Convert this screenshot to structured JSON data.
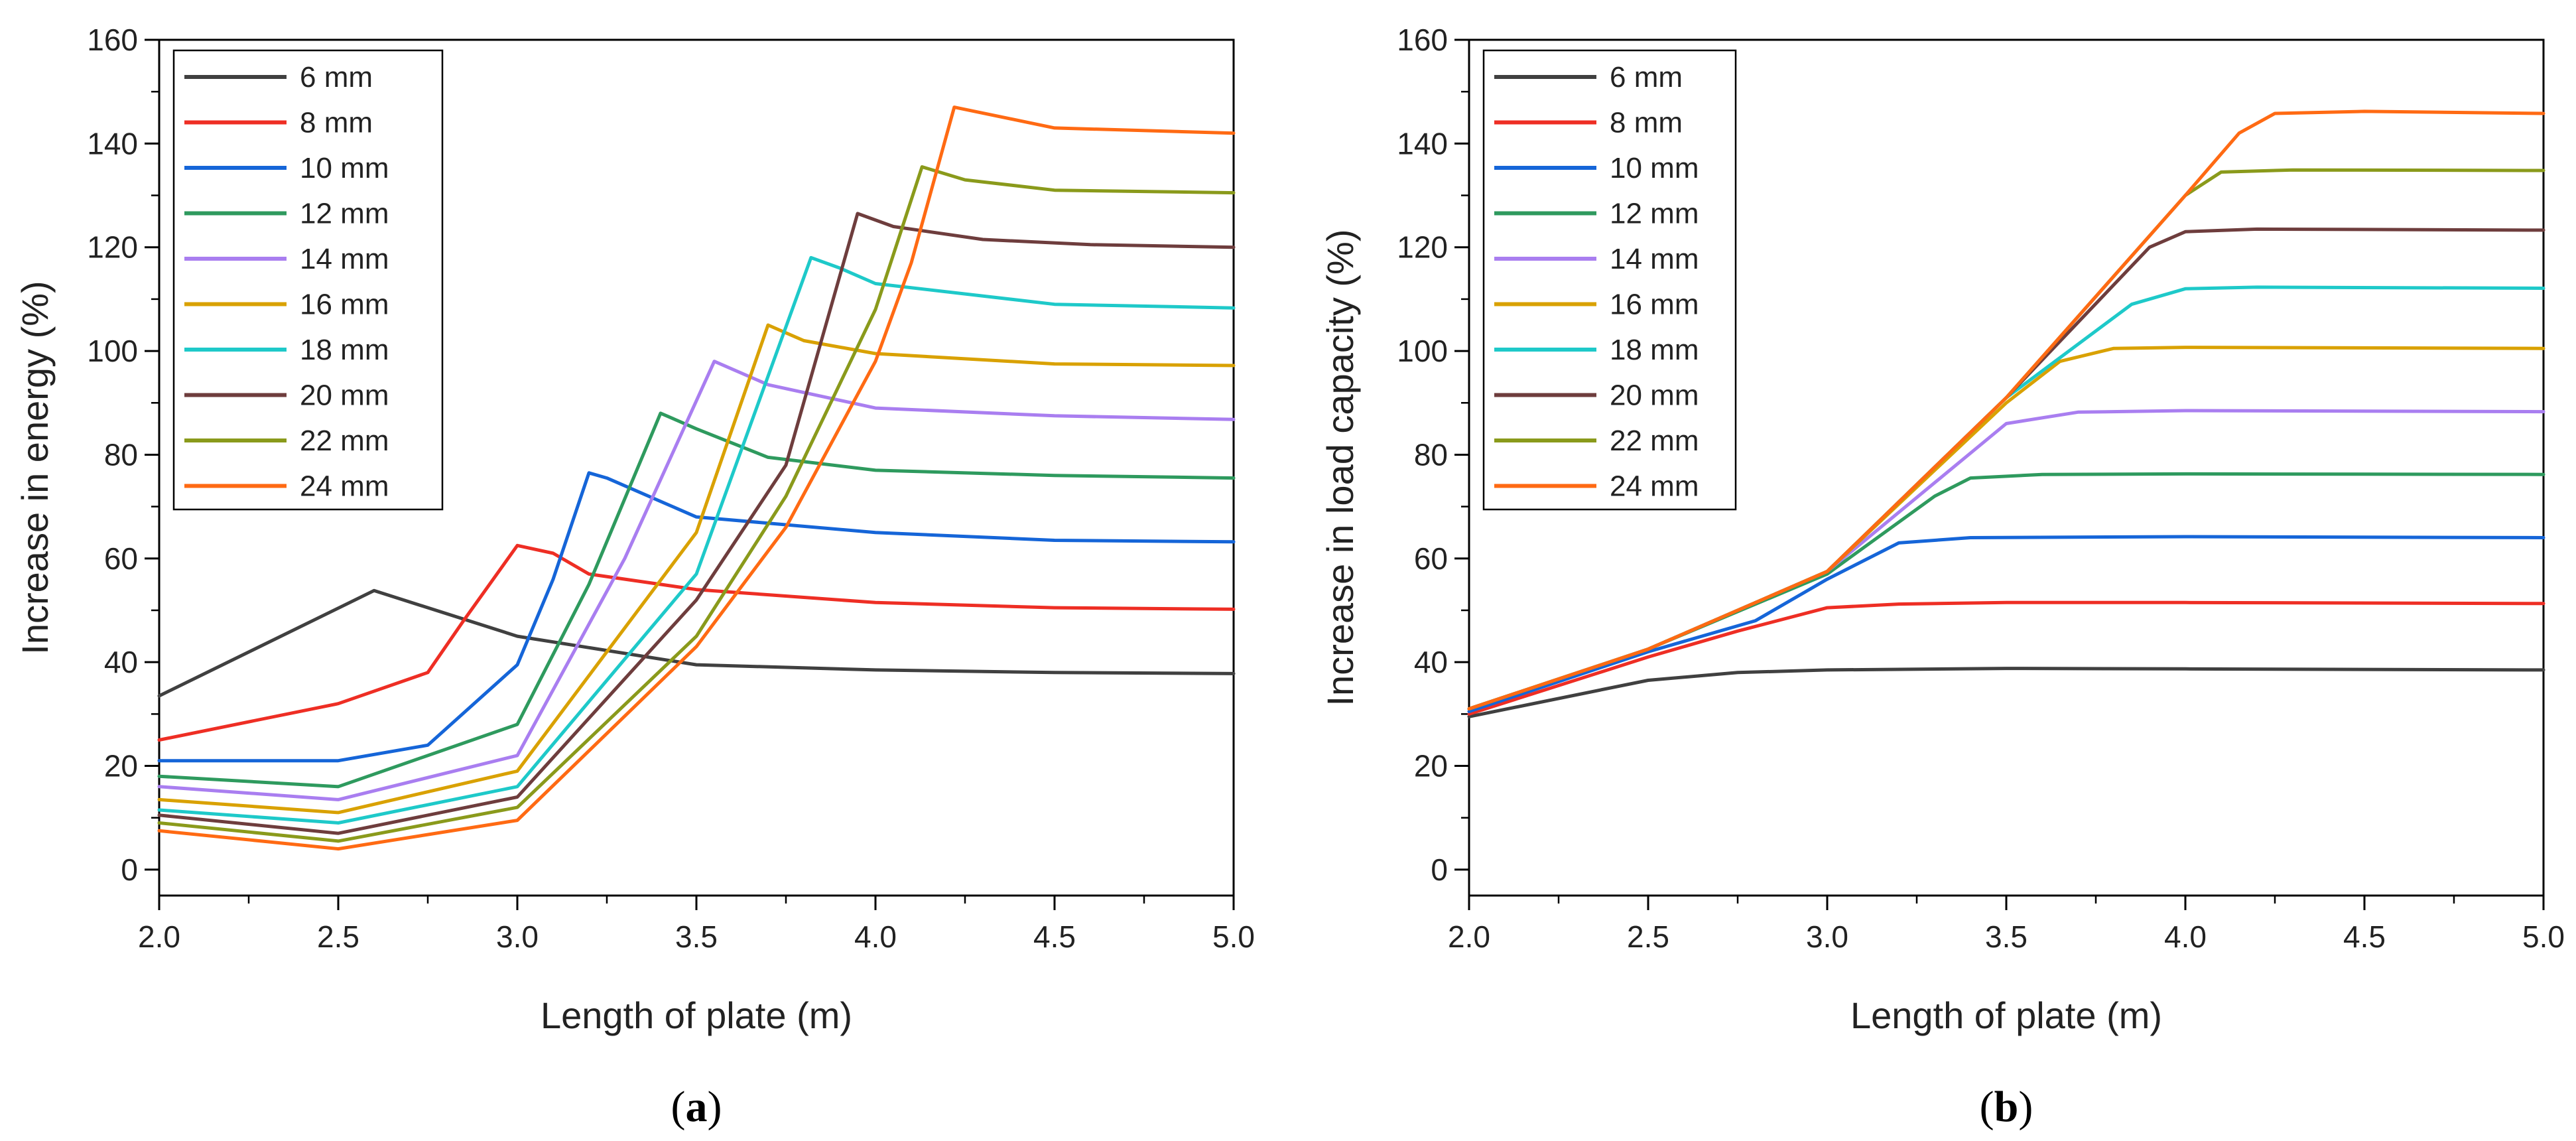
{
  "chart_data": [
    {
      "type": "line",
      "panel_label": "a",
      "xlabel": "Length of plate (m)",
      "ylabel": "Increase in energy (%)",
      "xlim": [
        2.0,
        5.0
      ],
      "ylim": [
        -5,
        160
      ],
      "xticks": [
        "2.0",
        "2.5",
        "3.0",
        "3.5",
        "4.0",
        "4.5",
        "5.0"
      ],
      "yticks": [
        "0",
        "20",
        "40",
        "60",
        "80",
        "100",
        "120",
        "140",
        "160"
      ],
      "legend_position": "top-left",
      "series": [
        {
          "name": "6 mm",
          "color": "#404040",
          "points": [
            [
              2.0,
              33.5
            ],
            [
              2.6,
              53.8
            ],
            [
              3.0,
              45
            ],
            [
              3.5,
              39.5
            ],
            [
              4.0,
              38.5
            ],
            [
              4.5,
              38
            ],
            [
              5.0,
              37.8
            ]
          ]
        },
        {
          "name": "8 mm",
          "color": "#ee2e24",
          "points": [
            [
              2.0,
              25
            ],
            [
              2.5,
              32
            ],
            [
              2.75,
              38
            ],
            [
              2.85,
              48
            ],
            [
              3.0,
              62.5
            ],
            [
              3.1,
              61
            ],
            [
              3.2,
              57
            ],
            [
              3.5,
              54
            ],
            [
              3.8,
              52.5
            ],
            [
              4.0,
              51.5
            ],
            [
              4.5,
              50.5
            ],
            [
              5.0,
              50.2
            ]
          ]
        },
        {
          "name": "10 mm",
          "color": "#1565d8",
          "points": [
            [
              2.0,
              21
            ],
            [
              2.5,
              21
            ],
            [
              2.75,
              24
            ],
            [
              3.0,
              39.5
            ],
            [
              3.1,
              56
            ],
            [
              3.2,
              76.5
            ],
            [
              3.25,
              75.5
            ],
            [
              3.5,
              68
            ],
            [
              4.0,
              65
            ],
            [
              4.5,
              63.5
            ],
            [
              5.0,
              63.2
            ]
          ]
        },
        {
          "name": "12 mm",
          "color": "#2e9a5e",
          "points": [
            [
              2.0,
              18
            ],
            [
              2.5,
              16
            ],
            [
              3.0,
              28
            ],
            [
              3.2,
              55
            ],
            [
              3.4,
              88
            ],
            [
              3.5,
              85
            ],
            [
              3.7,
              79.5
            ],
            [
              4.0,
              77
            ],
            [
              4.5,
              76
            ],
            [
              5.0,
              75.5
            ]
          ]
        },
        {
          "name": "14 mm",
          "color": "#a97ef0",
          "points": [
            [
              2.0,
              16
            ],
            [
              2.5,
              13.5
            ],
            [
              3.0,
              22
            ],
            [
              3.3,
              60
            ],
            [
              3.55,
              98
            ],
            [
              3.7,
              93.5
            ],
            [
              4.0,
              89
            ],
            [
              4.5,
              87.5
            ],
            [
              5.0,
              86.8
            ]
          ]
        },
        {
          "name": "16 mm",
          "color": "#d9a100",
          "points": [
            [
              2.0,
              13.5
            ],
            [
              2.5,
              11
            ],
            [
              3.0,
              19
            ],
            [
              3.5,
              65
            ],
            [
              3.7,
              105
            ],
            [
              3.8,
              102
            ],
            [
              4.0,
              99.5
            ],
            [
              4.5,
              97.5
            ],
            [
              5.0,
              97.2
            ]
          ]
        },
        {
          "name": "18 mm",
          "color": "#1ec9c9",
          "points": [
            [
              2.0,
              11.5
            ],
            [
              2.5,
              9
            ],
            [
              3.0,
              16
            ],
            [
              3.5,
              57
            ],
            [
              3.82,
              118
            ],
            [
              3.9,
              116
            ],
            [
              4.0,
              113
            ],
            [
              4.5,
              109
            ],
            [
              5.0,
              108.3
            ]
          ]
        },
        {
          "name": "20 mm",
          "color": "#6e3d3d",
          "points": [
            [
              2.0,
              10.5
            ],
            [
              2.5,
              7
            ],
            [
              3.0,
              14
            ],
            [
              3.5,
              52
            ],
            [
              3.75,
              78
            ],
            [
              3.95,
              126.5
            ],
            [
              4.05,
              124
            ],
            [
              4.3,
              121.5
            ],
            [
              4.6,
              120.5
            ],
            [
              5.0,
              120
            ]
          ]
        },
        {
          "name": "22 mm",
          "color": "#8a9a1b",
          "points": [
            [
              2.0,
              9
            ],
            [
              2.5,
              5.5
            ],
            [
              3.0,
              12
            ],
            [
              3.5,
              45
            ],
            [
              3.75,
              72
            ],
            [
              4.0,
              108
            ],
            [
              4.13,
              135.5
            ],
            [
              4.25,
              133
            ],
            [
              4.5,
              131
            ],
            [
              5.0,
              130.5
            ]
          ]
        },
        {
          "name": "24 mm",
          "color": "#ff6a13",
          "points": [
            [
              2.0,
              7.5
            ],
            [
              2.5,
              4
            ],
            [
              3.0,
              9.5
            ],
            [
              3.5,
              43
            ],
            [
              3.75,
              66
            ],
            [
              4.0,
              98
            ],
            [
              4.1,
              117
            ],
            [
              4.22,
              147
            ],
            [
              4.5,
              143
            ],
            [
              5.0,
              142
            ]
          ]
        }
      ]
    },
    {
      "type": "line",
      "panel_label": "b",
      "xlabel": "Length of plate (m)",
      "ylabel": "Increase in load capacity (%)",
      "xlim": [
        2.0,
        5.0
      ],
      "ylim": [
        -5,
        160
      ],
      "xticks": [
        "2.0",
        "2.5",
        "3.0",
        "3.5",
        "4.0",
        "4.5",
        "5.0"
      ],
      "yticks": [
        "0",
        "20",
        "40",
        "60",
        "80",
        "100",
        "120",
        "140",
        "160"
      ],
      "legend_position": "top-left",
      "series": [
        {
          "name": "6 mm",
          "color": "#404040",
          "points": [
            [
              2.0,
              29.5
            ],
            [
              2.5,
              36.5
            ],
            [
              2.75,
              38
            ],
            [
              3.0,
              38.5
            ],
            [
              3.5,
              38.8
            ],
            [
              4.0,
              38.7
            ],
            [
              5.0,
              38.5
            ]
          ]
        },
        {
          "name": "8 mm",
          "color": "#ee2e24",
          "points": [
            [
              2.0,
              30
            ],
            [
              2.5,
              41
            ],
            [
              2.75,
              46
            ],
            [
              3.0,
              50.5
            ],
            [
              3.2,
              51.2
            ],
            [
              3.5,
              51.5
            ],
            [
              4.0,
              51.5
            ],
            [
              5.0,
              51.3
            ]
          ]
        },
        {
          "name": "10 mm",
          "color": "#1565d8",
          "points": [
            [
              2.0,
              30.5
            ],
            [
              2.5,
              42
            ],
            [
              2.8,
              48
            ],
            [
              3.0,
              56
            ],
            [
              3.2,
              63
            ],
            [
              3.4,
              64
            ],
            [
              4.0,
              64.2
            ],
            [
              5.0,
              64
            ]
          ]
        },
        {
          "name": "12 mm",
          "color": "#2e9a5e",
          "points": [
            [
              2.0,
              31
            ],
            [
              2.5,
              42.5
            ],
            [
              3.0,
              57
            ],
            [
              3.3,
              72
            ],
            [
              3.4,
              75.5
            ],
            [
              3.6,
              76.2
            ],
            [
              4.0,
              76.3
            ],
            [
              5.0,
              76.2
            ]
          ]
        },
        {
          "name": "14 mm",
          "color": "#a97ef0",
          "points": [
            [
              2.0,
              31
            ],
            [
              2.5,
              42.5
            ],
            [
              3.0,
              57.5
            ],
            [
              3.5,
              86
            ],
            [
              3.7,
              88.2
            ],
            [
              4.0,
              88.5
            ],
            [
              5.0,
              88.3
            ]
          ]
        },
        {
          "name": "16 mm",
          "color": "#d9a100",
          "points": [
            [
              2.0,
              31
            ],
            [
              2.5,
              42.5
            ],
            [
              3.0,
              57.5
            ],
            [
              3.5,
              90
            ],
            [
              3.65,
              98
            ],
            [
              3.8,
              100.5
            ],
            [
              4.0,
              100.7
            ],
            [
              5.0,
              100.5
            ]
          ]
        },
        {
          "name": "18 mm",
          "color": "#1ec9c9",
          "points": [
            [
              2.0,
              31
            ],
            [
              2.5,
              42.5
            ],
            [
              3.0,
              57.5
            ],
            [
              3.5,
              91
            ],
            [
              3.85,
              109
            ],
            [
              4.0,
              112
            ],
            [
              4.2,
              112.3
            ],
            [
              5.0,
              112.1
            ]
          ]
        },
        {
          "name": "20 mm",
          "color": "#6e3d3d",
          "points": [
            [
              2.0,
              31
            ],
            [
              2.5,
              42.5
            ],
            [
              3.0,
              57.5
            ],
            [
              3.5,
              91
            ],
            [
              3.9,
              120
            ],
            [
              4.0,
              123
            ],
            [
              4.2,
              123.5
            ],
            [
              5.0,
              123.3
            ]
          ]
        },
        {
          "name": "22 mm",
          "color": "#8a9a1b",
          "points": [
            [
              2.0,
              31
            ],
            [
              2.5,
              42.5
            ],
            [
              3.0,
              57.5
            ],
            [
              3.5,
              91
            ],
            [
              4.0,
              130
            ],
            [
              4.1,
              134.5
            ],
            [
              4.3,
              134.9
            ],
            [
              5.0,
              134.8
            ]
          ]
        },
        {
          "name": "24 mm",
          "color": "#ff6a13",
          "points": [
            [
              2.0,
              31
            ],
            [
              2.5,
              42.5
            ],
            [
              3.0,
              57.5
            ],
            [
              3.5,
              91
            ],
            [
              4.0,
              130
            ],
            [
              4.15,
              142
            ],
            [
              4.25,
              145.8
            ],
            [
              4.5,
              146.2
            ],
            [
              5.0,
              145.8
            ]
          ]
        }
      ]
    }
  ]
}
